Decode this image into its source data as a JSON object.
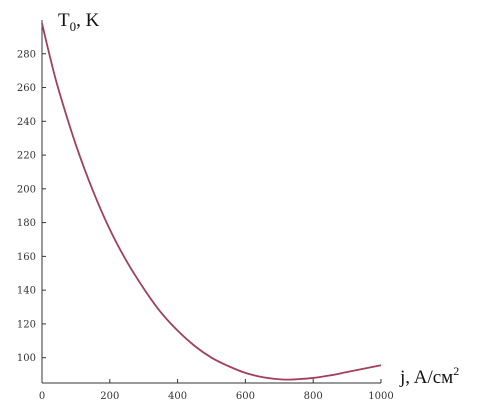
{
  "chart_data": {
    "type": "line",
    "ylabel": "T",
    "ylabel_sub": "0",
    "ylabel_unit": ", K",
    "xlabel": "j, A/см",
    "xlabel_sup": "2",
    "xlim": [
      0,
      1000
    ],
    "ylim": [
      85,
      300
    ],
    "xticks": [
      0,
      200,
      400,
      600,
      800,
      1000
    ],
    "yticks": [
      100,
      120,
      140,
      160,
      180,
      200,
      220,
      240,
      260,
      280
    ],
    "grid": false,
    "colors": {
      "curve": "#a0405a",
      "axis": "#333333"
    },
    "series": [
      {
        "x": [
          0,
          25,
          50,
          100,
          150,
          200,
          250,
          300,
          350,
          400,
          450,
          500,
          550,
          600,
          650,
          700,
          725,
          750,
          800,
          850,
          900,
          950,
          1000
        ],
        "values": [
          298,
          277,
          258,
          226,
          199,
          176,
          157,
          141,
          127,
          116,
          107,
          100,
          95,
          91,
          88.5,
          87.2,
          87,
          87.2,
          88,
          89.5,
          91.5,
          93.5,
          95.5
        ]
      }
    ]
  }
}
